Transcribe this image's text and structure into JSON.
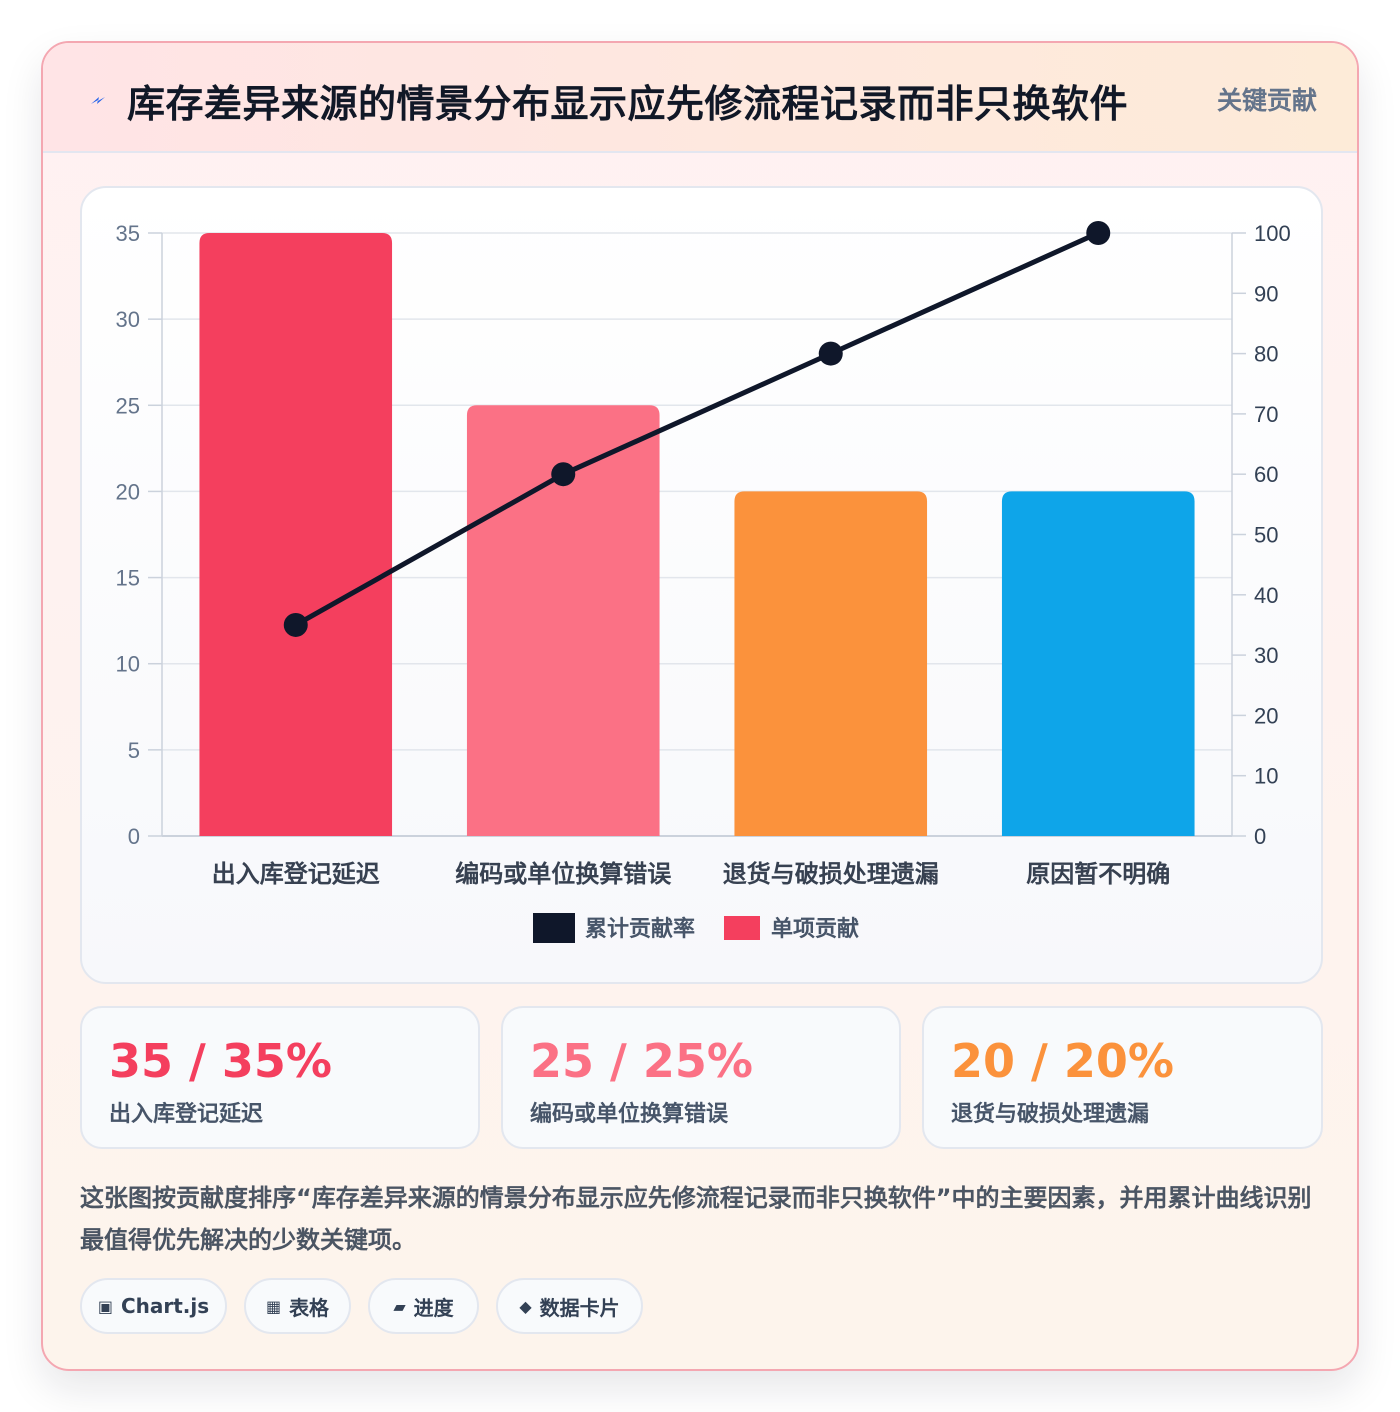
{
  "header": {
    "title": "库存差异来源的情景分布显示应先修流程记录而非只换软件",
    "tag": "关键贡献",
    "icon": "bolt-icon"
  },
  "chart_data": {
    "type": "bar",
    "categories": [
      "出入库登记延迟",
      "编码或单位换算错误",
      "退货与破损处理遗漏",
      "原因暂不明确"
    ],
    "series": [
      {
        "name": "单项贡献",
        "type": "bar",
        "axis": "left",
        "values": [
          35,
          25,
          20,
          20
        ],
        "colors": [
          "#f43f5e",
          "#fb7185",
          "#fb923c",
          "#0ea5e9"
        ]
      },
      {
        "name": "累计贡献率",
        "type": "line",
        "axis": "right",
        "values": [
          35,
          60,
          80,
          100
        ],
        "color": "#0f172a"
      }
    ],
    "y_left": {
      "min": 0,
      "max": 35,
      "ticks": [
        "0",
        "5",
        "10",
        "15",
        "20",
        "25",
        "30",
        "35"
      ]
    },
    "y_right": {
      "min": 0,
      "max": 100,
      "ticks": [
        "0",
        "10",
        "20",
        "30",
        "40",
        "50",
        "60",
        "70",
        "80",
        "90",
        "100"
      ]
    },
    "legend": {
      "position": "bottom",
      "items": [
        "累计贡献率",
        "单项贡献"
      ]
    },
    "grid": true
  },
  "stats": [
    {
      "value": "35 / 35%",
      "label": "出入库登记延迟",
      "color": "#f43f5e"
    },
    {
      "value": "25 / 25%",
      "label": "编码或单位换算错误",
      "color": "#fb7185"
    },
    {
      "value": "20 / 20%",
      "label": "退货与破损处理遗漏",
      "color": "#fb923c"
    }
  ],
  "description": "这张图按贡献度排序“库存差异来源的情景分布显示应先修流程记录而非只换软件”中的主要因素，并用累计曲线识别最值得优先解决的少数关键项。",
  "chips": [
    {
      "icon": "▣",
      "label": "Chart.js"
    },
    {
      "icon": "▦",
      "label": "表格"
    },
    {
      "icon": "▰",
      "label": "进度"
    },
    {
      "icon": "◆",
      "label": "数据卡片"
    }
  ]
}
